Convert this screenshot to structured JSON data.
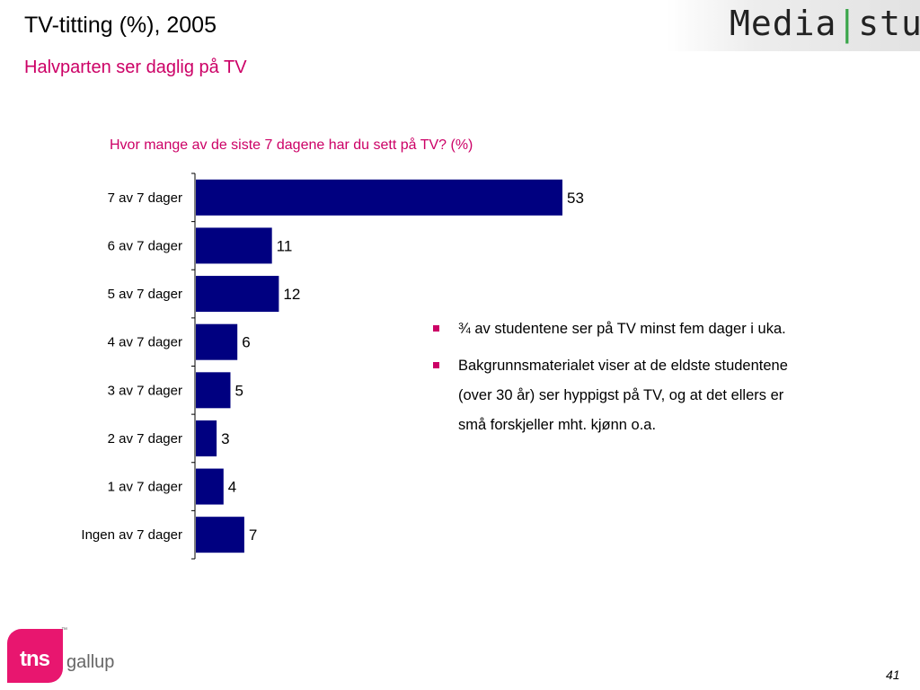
{
  "header": {
    "title": "TV-titting (%), 2005",
    "subtitle": "Halvparten ser daglig på TV",
    "logo_left": "Media",
    "logo_right": "stud"
  },
  "chart_data": {
    "type": "bar",
    "orientation": "horizontal",
    "title": "Hvor mange av de siste 7 dagene har du sett på TV? (%)",
    "categories": [
      "7 av 7 dager",
      "6 av 7 dager",
      "5 av 7 dager",
      "4 av 7 dager",
      "3 av 7 dager",
      "2 av 7 dager",
      "1 av 7 dager",
      "Ingen av 7 dager"
    ],
    "values": [
      53,
      11,
      12,
      6,
      5,
      3,
      4,
      7
    ],
    "xlim": [
      0,
      100
    ],
    "grid": false,
    "bar_color": "#000080"
  },
  "bullets": [
    "¾ av studentene ser på TV minst fem dager i uka.",
    "Bakgrunnsmaterialet viser at de eldste studentene (over 30 år) ser hyppigst på TV, og at det ellers er små forskjeller mht. kjønn o.a."
  ],
  "footer": {
    "brand_main": "tns",
    "brand_sub": "gallup",
    "trademark": "™",
    "page_number": "41"
  },
  "colors": {
    "accent": "#cc0066",
    "bar": "#000080",
    "brand": "#e8166f"
  }
}
